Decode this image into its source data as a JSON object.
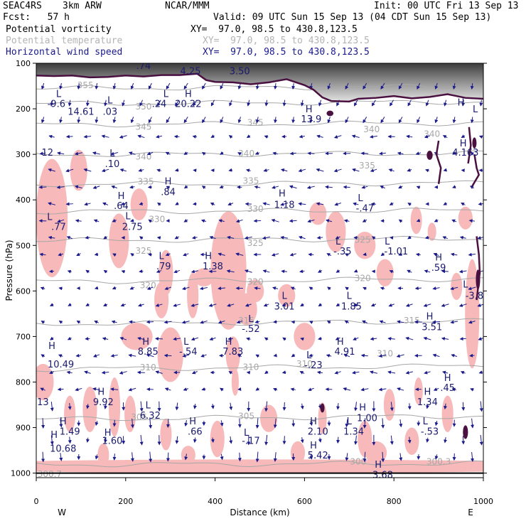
{
  "header": {
    "project": "SEAC4RS",
    "model": "3km ARW",
    "forecast": "Fcst:   57 h",
    "center": "NCAR/MMM",
    "init": "Init: 00 UTC Fri 13 Sep 13",
    "valid": "Valid: 09 UTC Sun 15 Sep 13 (04 CDT Sun 15 Sep 13)",
    "fields": [
      {
        "name": "Potential vorticity",
        "xy": "XY=  97.0, 98.5 to 430.8,123.5",
        "color": "#000000"
      },
      {
        "name": "Potential temperature",
        "xy": "XY=  97.0, 98.5 to 430.8,123.5",
        "color": "#b4b4b4"
      },
      {
        "name": "Horizontal wind speed",
        "xy": "XY=  97.0, 98.5 to 430.8,123.5",
        "color": "#1a1a8c"
      }
    ]
  },
  "chart_data": {
    "type": "heatmap",
    "xlabel": "Distance (km)",
    "ylabel": "Pressure (hPa)",
    "xlim": [
      0,
      1000
    ],
    "ylim": [
      1010,
      100
    ],
    "x_ticks": [
      0,
      200,
      400,
      600,
      800,
      1000
    ],
    "x_tick_labels": [
      "0",
      "200",
      "400",
      "600",
      "800",
      "1000"
    ],
    "y_ticks": [
      100,
      200,
      300,
      400,
      500,
      600,
      700,
      800,
      900,
      1000
    ],
    "y_tick_labels": [
      "100",
      "200",
      "300",
      "400",
      "500",
      "600",
      "700",
      "800",
      "900",
      "1000"
    ],
    "x_end_labels": {
      "left": "W",
      "right": "E"
    },
    "colors": {
      "pv_contour": "#4a1040",
      "theta_contour": "#a8a8a8",
      "wind_vectors": "#1a1a8c",
      "pv_shading": "#f7b9b9",
      "annotation": "#1a1a6e"
    },
    "theta_contours": [
      {
        "label": "355",
        "x": 75,
        "p": 155,
        "slope": 0.03
      },
      {
        "label": "350",
        "x": 250,
        "p": 188,
        "slope": 0.03
      },
      {
        "label": "345",
        "x": 250,
        "p": 234,
        "slope": 0.025
      },
      {
        "label": "340",
        "x": 250,
        "p": 300,
        "slope": 0.02
      },
      {
        "label": "335",
        "x": 250,
        "p": 365,
        "slope": 0.02
      },
      {
        "label": "330",
        "x": 250,
        "p": 425,
        "slope": 0.02
      },
      {
        "label": "325",
        "x": 300,
        "p": 488,
        "slope": 0.03
      },
      {
        "label": "320",
        "x": 250,
        "p": 578,
        "slope": 0.04
      },
      {
        "label": "315",
        "x": 400,
        "p": 670,
        "slope": 0.04
      },
      {
        "label": "310",
        "x": 250,
        "p": 770,
        "slope": 0.05
      },
      {
        "label": "305",
        "x": 250,
        "p": 880,
        "slope": 0.05
      },
      {
        "label": "300",
        "x": 500,
        "p": 980,
        "slope": 0.02
      }
    ],
    "theta_labels": [
      {
        "text": "355",
        "x": 110,
        "p": 148
      },
      {
        "text": "350",
        "x": 240,
        "p": 195
      },
      {
        "text": "345",
        "x": 240,
        "p": 240
      },
      {
        "text": "345",
        "x": 490,
        "p": 230
      },
      {
        "text": "340",
        "x": 240,
        "p": 305
      },
      {
        "text": "340",
        "x": 470,
        "p": 298
      },
      {
        "text": "340",
        "x": 750,
        "p": 245
      },
      {
        "text": "340",
        "x": 885,
        "p": 255
      },
      {
        "text": "335",
        "x": 245,
        "p": 360
      },
      {
        "text": "335",
        "x": 480,
        "p": 358
      },
      {
        "text": "335",
        "x": 740,
        "p": 325
      },
      {
        "text": "330",
        "x": 270,
        "p": 443
      },
      {
        "text": "330",
        "x": 490,
        "p": 420
      },
      {
        "text": "325",
        "x": 240,
        "p": 512
      },
      {
        "text": "325",
        "x": 490,
        "p": 495
      },
      {
        "text": "325",
        "x": 730,
        "p": 488
      },
      {
        "text": "320",
        "x": 250,
        "p": 588
      },
      {
        "text": "320",
        "x": 490,
        "p": 580
      },
      {
        "text": "320",
        "x": 730,
        "p": 572
      },
      {
        "text": "315",
        "x": 470,
        "p": 665
      },
      {
        "text": "315",
        "x": 840,
        "p": 665
      },
      {
        "text": "310",
        "x": 250,
        "p": 768
      },
      {
        "text": "310",
        "x": 480,
        "p": 767
      },
      {
        "text": "310",
        "x": 600,
        "p": 760
      },
      {
        "text": "310",
        "x": 780,
        "p": 738
      },
      {
        "text": "305",
        "x": 230,
        "p": 877
      },
      {
        "text": "305",
        "x": 470,
        "p": 875
      },
      {
        "text": "300",
        "x": 720,
        "p": 975
      },
      {
        "text": "300.3",
        "x": 900,
        "p": 975
      },
      {
        "text": "300.7",
        "x": 30,
        "p": 1002
      }
    ],
    "pv_tropopause": [
      [
        0,
        127
      ],
      [
        40,
        128
      ],
      [
        80,
        127
      ],
      [
        120,
        131
      ],
      [
        160,
        130
      ],
      [
        200,
        127
      ],
      [
        240,
        129
      ],
      [
        280,
        126
      ],
      [
        320,
        126
      ],
      [
        360,
        123
      ],
      [
        380,
        137
      ],
      [
        400,
        141
      ],
      [
        440,
        142
      ],
      [
        480,
        146
      ],
      [
        520,
        142
      ],
      [
        560,
        135
      ],
      [
        600,
        148
      ],
      [
        620,
        158
      ],
      [
        640,
        175
      ],
      [
        660,
        183
      ],
      [
        700,
        184
      ],
      [
        720,
        178
      ],
      [
        760,
        176
      ],
      [
        800,
        172
      ],
      [
        840,
        177
      ],
      [
        880,
        174
      ],
      [
        920,
        168
      ],
      [
        960,
        176
      ],
      [
        1000,
        178
      ]
    ],
    "pv_extra_contours": [
      [
        [
          900,
          270
        ],
        [
          895,
          300
        ],
        [
          905,
          330
        ],
        [
          900,
          365
        ]
      ],
      [
        [
          980,
          300
        ],
        [
          985,
          330
        ],
        [
          990,
          345
        ],
        [
          975,
          370
        ]
      ],
      [
        [
          985,
          480
        ],
        [
          990,
          520
        ],
        [
          992,
          560
        ],
        [
          985,
          620
        ]
      ],
      [
        [
          968,
          240
        ],
        [
          972,
          280
        ],
        [
          966,
          320
        ]
      ]
    ],
    "pv_dark_blobs": [
      {
        "x": 640,
        "p": 857,
        "rx": 5,
        "rh": 10
      },
      {
        "x": 960,
        "p": 910,
        "rx": 6,
        "rh": 15
      },
      {
        "x": 988,
        "p": 575,
        "rx": 5,
        "rh": 22
      },
      {
        "x": 880,
        "p": 302,
        "rx": 7,
        "rh": 10
      },
      {
        "x": 980,
        "p": 275,
        "rx": 5,
        "rh": 12
      },
      {
        "x": 657,
        "p": 210,
        "rx": 8,
        "rh": 6
      }
    ],
    "pv_shaded_regions": [
      {
        "x": 35,
        "p": 440,
        "rx": 22,
        "rh": 130
      },
      {
        "x": 95,
        "p": 335,
        "rx": 12,
        "rh": 45
      },
      {
        "x": 185,
        "p": 490,
        "rx": 14,
        "rh": 60
      },
      {
        "x": 230,
        "p": 410,
        "rx": 12,
        "rh": 35
      },
      {
        "x": 290,
        "p": 560,
        "rx": 10,
        "rh": 50
      },
      {
        "x": 300,
        "p": 740,
        "rx": 18,
        "rh": 60
      },
      {
        "x": 280,
        "p": 620,
        "rx": 10,
        "rh": 40
      },
      {
        "x": 225,
        "p": 700,
        "rx": 22,
        "rh": 30
      },
      {
        "x": 350,
        "p": 610,
        "rx": 8,
        "rh": 50
      },
      {
        "x": 375,
        "p": 570,
        "rx": 14,
        "rh": 20
      },
      {
        "x": 430,
        "p": 555,
        "rx": 25,
        "rh": 130
      },
      {
        "x": 440,
        "p": 740,
        "rx": 10,
        "rh": 40
      },
      {
        "x": 445,
        "p": 800,
        "rx": 5,
        "rh": 30
      },
      {
        "x": 470,
        "p": 640,
        "rx": 15,
        "rh": 35
      },
      {
        "x": 490,
        "p": 600,
        "rx": 12,
        "rh": 25
      },
      {
        "x": 405,
        "p": 925,
        "rx": 10,
        "rh": 40
      },
      {
        "x": 520,
        "p": 880,
        "rx": 12,
        "rh": 30
      },
      {
        "x": 560,
        "p": 610,
        "rx": 12,
        "rh": 25
      },
      {
        "x": 600,
        "p": 700,
        "rx": 15,
        "rh": 30
      },
      {
        "x": 630,
        "p": 430,
        "rx": 12,
        "rh": 25
      },
      {
        "x": 670,
        "p": 470,
        "rx": 14,
        "rh": 45
      },
      {
        "x": 735,
        "p": 500,
        "rx": 15,
        "rh": 30
      },
      {
        "x": 780,
        "p": 560,
        "rx": 12,
        "rh": 30
      },
      {
        "x": 850,
        "p": 445,
        "rx": 8,
        "rh": 30
      },
      {
        "x": 885,
        "p": 470,
        "rx": 6,
        "rh": 20
      },
      {
        "x": 960,
        "p": 440,
        "rx": 10,
        "rh": 25
      },
      {
        "x": 940,
        "p": 590,
        "rx": 8,
        "rh": 30
      },
      {
        "x": 975,
        "p": 650,
        "rx": 10,
        "rh": 120
      },
      {
        "x": 15,
        "p": 800,
        "rx": 15,
        "rh": 40
      },
      {
        "x": 75,
        "p": 870,
        "rx": 8,
        "rh": 40
      },
      {
        "x": 120,
        "p": 860,
        "rx": 10,
        "rh": 50
      },
      {
        "x": 175,
        "p": 855,
        "rx": 8,
        "rh": 65
      },
      {
        "x": 210,
        "p": 870,
        "rx": 8,
        "rh": 40
      },
      {
        "x": 290,
        "p": 915,
        "rx": 8,
        "rh": 35
      },
      {
        "x": 640,
        "p": 880,
        "rx": 6,
        "rh": 35
      },
      {
        "x": 735,
        "p": 925,
        "rx": 10,
        "rh": 40
      },
      {
        "x": 790,
        "p": 850,
        "rx": 8,
        "rh": 35
      },
      {
        "x": 855,
        "p": 820,
        "rx": 6,
        "rh": 30
      },
      {
        "x": 920,
        "p": 870,
        "rx": 8,
        "rh": 40
      },
      {
        "x": 500,
        "p": 985,
        "rx": 500,
        "rh": 15
      },
      {
        "x": 150,
        "p": 960,
        "rx": 8,
        "rh": 25
      },
      {
        "x": 340,
        "p": 960,
        "rx": 10,
        "rh": 20
      },
      {
        "x": 585,
        "p": 955,
        "rx": 10,
        "rh": 25
      },
      {
        "x": 760,
        "p": 955,
        "rx": 15,
        "rh": 25
      },
      {
        "x": 840,
        "p": 930,
        "rx": 10,
        "rh": 30
      }
    ],
    "annotations": [
      {
        "text": ".74",
        "x": 240,
        "p": 105
      },
      {
        "text": "4.25",
        "x": 345,
        "p": 116
      },
      {
        "text": "3.50",
        "x": 455,
        "p": 116
      },
      {
        "text": "L",
        "x": 50,
        "p": 166
      },
      {
        "text": "-9.6",
        "x": 45,
        "p": 188
      },
      {
        "text": "14.61",
        "x": 100,
        "p": 205
      },
      {
        "text": "L",
        "x": 165,
        "p": 180
      },
      {
        "text": ".03",
        "x": 165,
        "p": 205
      },
      {
        "text": "L",
        "x": 290,
        "p": 166
      },
      {
        "text": ".24",
        "x": 275,
        "p": 188
      },
      {
        "text": "H",
        "x": 340,
        "p": 166
      },
      {
        "text": "20.22",
        "x": 340,
        "p": 188
      },
      {
        "text": "H",
        "x": 610,
        "p": 200
      },
      {
        "text": "13.9",
        "x": 615,
        "p": 222
      },
      {
        "text": "H",
        "x": 950,
        "p": 185
      },
      {
        "text": "L",
        "x": 982,
        "p": 200
      },
      {
        "text": "12",
        "x": 25,
        "p": 295
      },
      {
        "text": "L",
        "x": 170,
        "p": 297
      },
      {
        "text": ".10",
        "x": 170,
        "p": 320
      },
      {
        "text": "H",
        "x": 955,
        "p": 275
      },
      {
        "text": "4.163",
        "x": 960,
        "p": 295
      },
      {
        "text": "H",
        "x": 295,
        "p": 358
      },
      {
        "text": ".84",
        "x": 295,
        "p": 382
      },
      {
        "text": "H",
        "x": 190,
        "p": 390
      },
      {
        "text": ".64",
        "x": 190,
        "p": 412
      },
      {
        "text": "L",
        "x": 205,
        "p": 435
      },
      {
        "text": "2.75",
        "x": 215,
        "p": 458
      },
      {
        "text": "L",
        "x": 30,
        "p": 436
      },
      {
        "text": ".77",
        "x": 50,
        "p": 458
      },
      {
        "text": "H",
        "x": 550,
        "p": 385
      },
      {
        "text": "1.18",
        "x": 555,
        "p": 410
      },
      {
        "text": "L",
        "x": 725,
        "p": 395
      },
      {
        "text": "-.47",
        "x": 735,
        "p": 418
      },
      {
        "text": "L",
        "x": 675,
        "p": 490
      },
      {
        "text": "-.35",
        "x": 685,
        "p": 512
      },
      {
        "text": "L",
        "x": 785,
        "p": 490
      },
      {
        "text": "-1.01",
        "x": 805,
        "p": 512
      },
      {
        "text": "L",
        "x": 280,
        "p": 522
      },
      {
        "text": ".79",
        "x": 285,
        "p": 545
      },
      {
        "text": "H",
        "x": 385,
        "p": 522
      },
      {
        "text": "1.38",
        "x": 395,
        "p": 545
      },
      {
        "text": "H",
        "x": 900,
        "p": 525
      },
      {
        "text": ".59",
        "x": 900,
        "p": 548
      },
      {
        "text": "L",
        "x": 960,
        "p": 585
      },
      {
        "text": "-3.8",
        "x": 980,
        "p": 610
      },
      {
        "text": "L",
        "x": 700,
        "p": 610
      },
      {
        "text": "1.85",
        "x": 705,
        "p": 633
      },
      {
        "text": "L",
        "x": 555,
        "p": 610
      },
      {
        "text": "3.01",
        "x": 555,
        "p": 633
      },
      {
        "text": "H",
        "x": 880,
        "p": 655
      },
      {
        "text": "3.51",
        "x": 885,
        "p": 678
      },
      {
        "text": "L",
        "x": 480,
        "p": 660
      },
      {
        "text": "-.52",
        "x": 480,
        "p": 682
      },
      {
        "text": "H",
        "x": 245,
        "p": 710
      },
      {
        "text": "8.85",
        "x": 250,
        "p": 732
      },
      {
        "text": "L",
        "x": 335,
        "p": 710
      },
      {
        "text": "-.54",
        "x": 340,
        "p": 732
      },
      {
        "text": "H",
        "x": 430,
        "p": 710
      },
      {
        "text": "7.83",
        "x": 440,
        "p": 732
      },
      {
        "text": "H",
        "x": 680,
        "p": 710
      },
      {
        "text": "4.91",
        "x": 690,
        "p": 732
      },
      {
        "text": "H",
        "x": 35,
        "p": 720
      },
      {
        "text": "10.49",
        "x": 55,
        "p": 760
      },
      {
        "text": "L",
        "x": 610,
        "p": 740
      },
      {
        "text": "-.23",
        "x": 620,
        "p": 762
      },
      {
        "text": "H",
        "x": 920,
        "p": 790
      },
      {
        "text": ".45",
        "x": 920,
        "p": 812
      },
      {
        "text": "13",
        "x": 15,
        "p": 843
      },
      {
        "text": "H",
        "x": 145,
        "p": 820
      },
      {
        "text": "9.92",
        "x": 150,
        "p": 843
      },
      {
        "text": "H",
        "x": 875,
        "p": 820
      },
      {
        "text": "1.34",
        "x": 875,
        "p": 843
      },
      {
        "text": "L",
        "x": 250,
        "p": 850
      },
      {
        "text": "6.32",
        "x": 255,
        "p": 873
      },
      {
        "text": "H",
        "x": 730,
        "p": 855
      },
      {
        "text": "1.00",
        "x": 740,
        "p": 878
      },
      {
        "text": "H",
        "x": 60,
        "p": 885
      },
      {
        "text": "1.49",
        "x": 75,
        "p": 908
      },
      {
        "text": "H",
        "x": 350,
        "p": 885
      },
      {
        "text": ".66",
        "x": 355,
        "p": 908
      },
      {
        "text": "H",
        "x": 620,
        "p": 885
      },
      {
        "text": "2.10",
        "x": 630,
        "p": 908
      },
      {
        "text": "L",
        "x": 700,
        "p": 885
      },
      {
        "text": "1.34",
        "x": 710,
        "p": 908
      },
      {
        "text": "L",
        "x": 870,
        "p": 885
      },
      {
        "text": "-.53",
        "x": 880,
        "p": 908
      },
      {
        "text": "H",
        "x": 40,
        "p": 915
      },
      {
        "text": "10.68",
        "x": 60,
        "p": 945
      },
      {
        "text": "H",
        "x": 160,
        "p": 910
      },
      {
        "text": "1.60",
        "x": 170,
        "p": 928
      },
      {
        "text": "L",
        "x": 470,
        "p": 910
      },
      {
        "text": "-.17",
        "x": 480,
        "p": 928
      },
      {
        "text": "H",
        "x": 620,
        "p": 938
      },
      {
        "text": "5.42",
        "x": 630,
        "p": 960
      },
      {
        "text": "H",
        "x": 765,
        "p": 980
      },
      {
        "text": "3.68",
        "x": 775,
        "p": 1003
      }
    ]
  }
}
